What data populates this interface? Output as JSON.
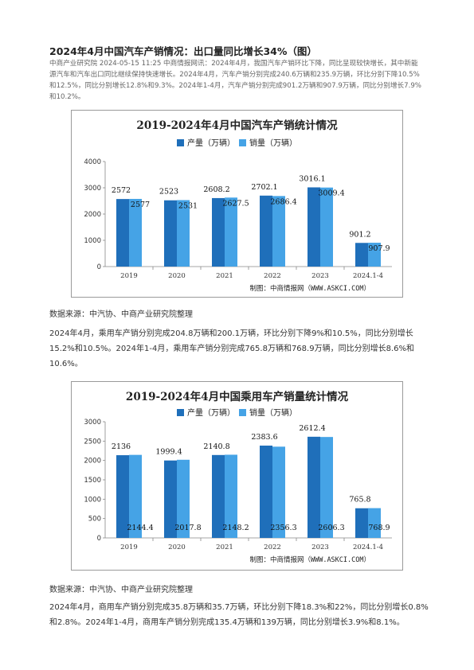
{
  "article": {
    "title": "2024年4月中国汽车产销情况：出口量同比增长34%（图）",
    "meta": "中商产业研究院 2024-05-15 11:25 中商情报网讯：2024年4月，我国汽车产销环比下降，同比呈现较快增长，其中新能源汽车和汽车出口同比继续保持快速增长。2024年4月，汽车产销分别完成240.6万辆和235.9万辆，环比分别下降10.5%和12.5%，同比分别增长12.8%和9.3%。2024年1-4月，汽车产销分别完成901.2万辆和907.9万辆，同比分别增长7.9%和10.2%。",
    "source1": "数据来源：中汽协、中商产业研究院整理",
    "para1": "2024年4月，乘用车产销分别完成204.8万辆和200.1万辆，环比分别下降9%和10.5%，同比分别增长15.2%和10.5%。2024年1-4月，乘用车产销分别完成765.8万辆和768.9万辆，同比分别增长8.6%和10.6%。",
    "source2": "数据来源：中汽协、中商产业研究院整理",
    "para2": "2024年4月，商用车产销分别完成35.8万辆和35.7万辆，环比分别下降18.3%和22%，同比分别增长0.8%和2.8%。2024年1-4月，商用车产销分别完成135.4万辆和139万辆，同比分别增长3.9%和8.1%。"
  },
  "colors": {
    "production": "#1f6fba",
    "sales": "#45a3e6"
  },
  "chart_data": [
    {
      "type": "bar",
      "title": "2019-2024年4月中国汽车产销统计情况",
      "categories": [
        "2019",
        "2020",
        "2021",
        "2022",
        "2023",
        "2024.1-4"
      ],
      "series": [
        {
          "name": "产量（万辆）",
          "values": [
            2572,
            2523,
            2608.2,
            2702.1,
            3016.1,
            901.2
          ],
          "labels": [
            "2572",
            "2523",
            "2608.2",
            "2702.1",
            "3016.1",
            "901.2"
          ]
        },
        {
          "name": "销量（万辆）",
          "values": [
            2577,
            2531,
            2627.5,
            2686.4,
            3009.4,
            907.9
          ],
          "labels": [
            "2577",
            "2531",
            "2627.5",
            "2686.4",
            "3009.4",
            "907.9"
          ]
        }
      ],
      "yticks": [
        0,
        1000,
        2000,
        3000,
        4000
      ],
      "ylim": [
        0,
        4000
      ],
      "legend_position": "top-center",
      "grid": false,
      "credit": "制图：中商情报网（WWW.ASKCI.COM）"
    },
    {
      "type": "bar",
      "title": "2019-2024年4月中国乘用车产销量统计情况",
      "categories": [
        "2019",
        "2020",
        "2021",
        "2022",
        "2023",
        "2024.1-4"
      ],
      "series": [
        {
          "name": "产量（万辆）",
          "values": [
            2136,
            1999.4,
            2140.8,
            2383.6,
            2612.4,
            765.8
          ],
          "labels": [
            "2136",
            "1999.4",
            "2140.8",
            "2383.6",
            "2612.4",
            "765.8"
          ]
        },
        {
          "name": "销量（万辆）",
          "values": [
            2144.4,
            2017.8,
            2148.2,
            2356.3,
            2606.3,
            768.9
          ],
          "labels": [
            "2144.4",
            "2017.8",
            "2148.2",
            "2356.3",
            "2606.3",
            "768.9"
          ]
        }
      ],
      "yticks": [
        0,
        500,
        1000,
        1500,
        2000,
        2500,
        3000
      ],
      "ylim": [
        0,
        3000
      ],
      "legend_position": "top-center",
      "grid": false,
      "credit": "制图：中商情报网（WWW.ASKCI.COM）"
    }
  ]
}
